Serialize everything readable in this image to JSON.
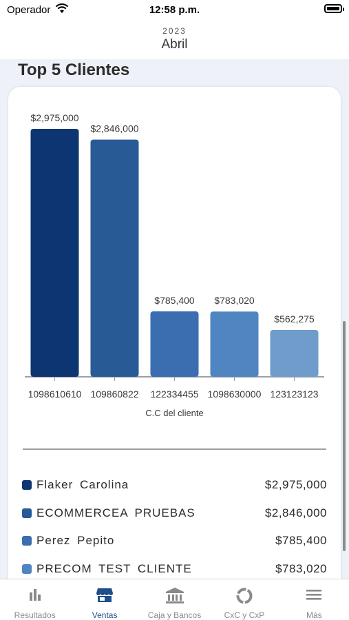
{
  "status_bar": {
    "carrier": "Operador",
    "time": "12:58 p.m."
  },
  "period": {
    "year": "2023",
    "month": "Abril"
  },
  "section": {
    "title": "Top 5 Clientes"
  },
  "chart_data": {
    "type": "bar",
    "categories": [
      "1098610610",
      "109860822",
      "122334455",
      "1098630000",
      "123123123"
    ],
    "values": [
      2975000,
      2846000,
      785400,
      783020,
      562275
    ],
    "value_labels": [
      "$2,975,000",
      "$2,846,000",
      "$785,400",
      "$783,020",
      "$562,275"
    ],
    "bar_colors": [
      "#0d3572",
      "#285b95",
      "#3b6eb0",
      "#4f85c0",
      "#6f9ccb"
    ],
    "xlabel": "C.C del cliente",
    "ylabel": "",
    "ylim": [
      0,
      2975000
    ],
    "grid": false
  },
  "legend": [
    {
      "name": "Flaker Carolina",
      "value": "$2,975,000",
      "color": "#0d3572"
    },
    {
      "name": "ECOMMERCEA PRUEBAS",
      "value": "$2,846,000",
      "color": "#285b95"
    },
    {
      "name": "Perez Pepito",
      "value": "$785,400",
      "color": "#3b6eb0"
    },
    {
      "name": "PRECOM TEST CLIENTE",
      "value": "$783,020",
      "color": "#4f85c0"
    }
  ],
  "tabs": [
    {
      "label": "Resultados",
      "icon": "bar-chart-icon",
      "active": false
    },
    {
      "label": "Ventas",
      "icon": "store-icon",
      "active": true
    },
    {
      "label": "Caja y Bancos",
      "icon": "bank-icon",
      "active": false
    },
    {
      "label": "CxC y CxP",
      "icon": "donut-icon",
      "active": false
    },
    {
      "label": "Más",
      "icon": "menu-icon",
      "active": false
    }
  ],
  "colors": {
    "active_tab": "#1f4f8b",
    "inactive_tab": "#8a8a8a",
    "background": "#eef1f8"
  }
}
